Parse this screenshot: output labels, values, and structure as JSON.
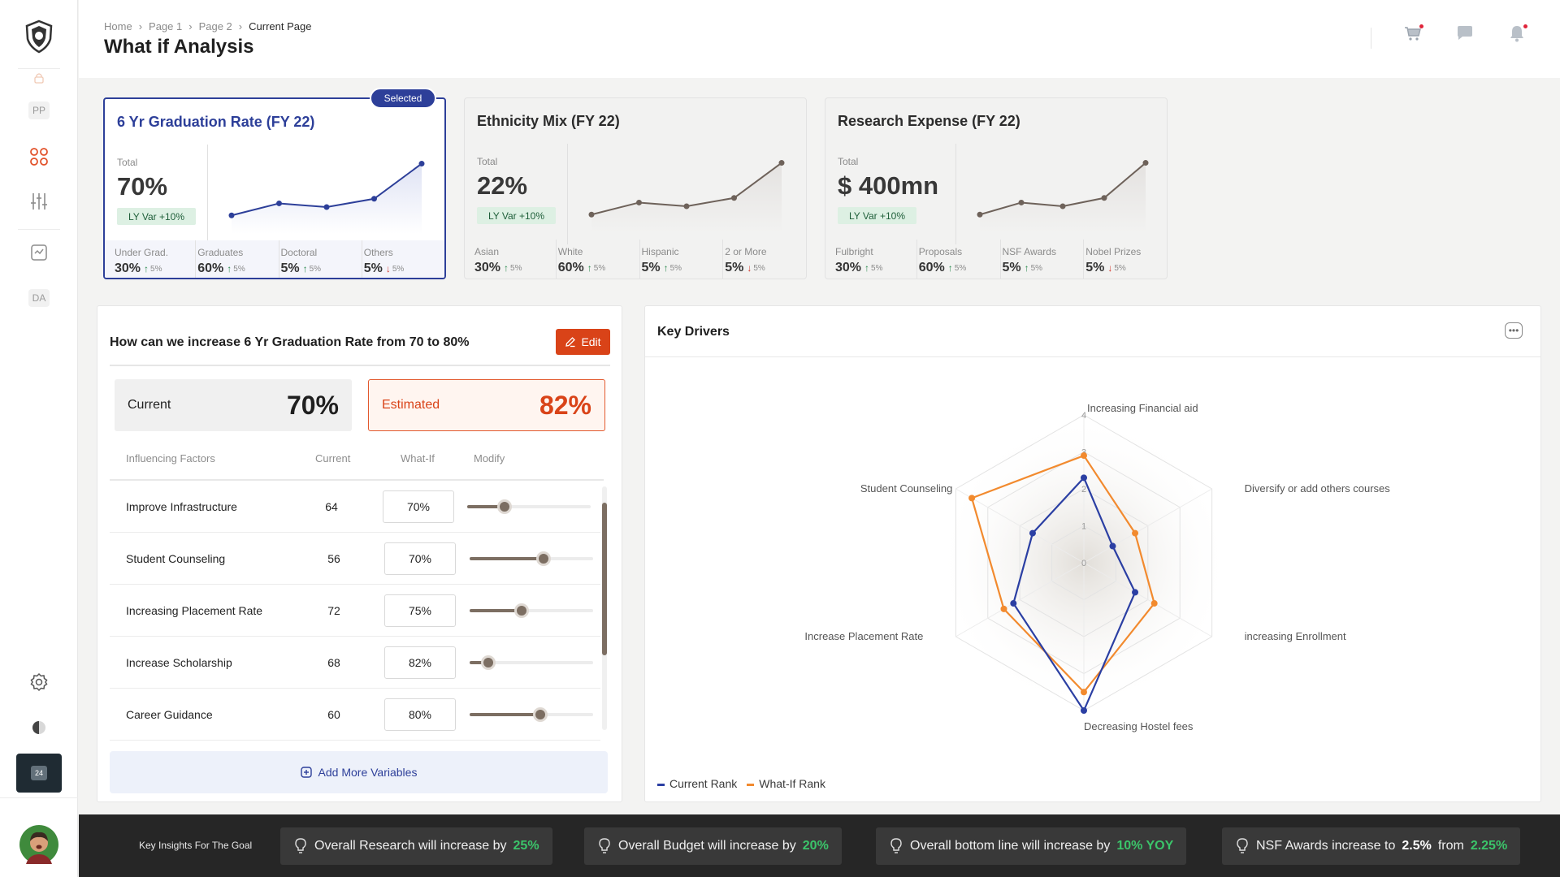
{
  "sidebar": {
    "badges": [
      "PP",
      "DA"
    ],
    "bottom_badge": "24"
  },
  "header": {
    "breadcrumbs": [
      "Home",
      "Page 1",
      "Page 2",
      "Current Page"
    ],
    "title": "What if Analysis"
  },
  "kpis": [
    {
      "title": "6 Yr Graduation Rate (FY 22)",
      "total_label": "Total",
      "value": "70%",
      "ly_var": "LY Var  +10%",
      "selected": true,
      "spark": [
        2.0,
        3.3,
        2.9,
        3.8,
        7.6
      ],
      "subs": [
        {
          "label": "Under Grad.",
          "value": "30%",
          "dir": "up",
          "change": "5%"
        },
        {
          "label": "Graduates",
          "value": "60%",
          "dir": "up",
          "change": "5%"
        },
        {
          "label": "Doctoral",
          "value": "5%",
          "dir": "up",
          "change": "5%"
        },
        {
          "label": "Others",
          "value": "5%",
          "dir": "down",
          "change": "5%"
        }
      ]
    },
    {
      "title": "Ethnicity Mix (FY 22)",
      "total_label": "Total",
      "value": "22%",
      "ly_var": "LY Var  +10%",
      "selected": false,
      "spark": [
        2.0,
        3.3,
        2.9,
        3.8,
        7.6
      ],
      "subs": [
        {
          "label": "Asian",
          "value": "30%",
          "dir": "up",
          "change": "5%"
        },
        {
          "label": "White",
          "value": "60%",
          "dir": "up",
          "change": "5%"
        },
        {
          "label": "Hispanic",
          "value": "5%",
          "dir": "up",
          "change": "5%"
        },
        {
          "label": "2 or More",
          "value": "5%",
          "dir": "down",
          "change": "5%"
        }
      ]
    },
    {
      "title": "Research Expense (FY 22)",
      "total_label": "Total",
      "value": "$ 400mn",
      "ly_var": "LY Var  +10%",
      "selected": false,
      "spark": [
        2.0,
        3.3,
        2.9,
        3.8,
        7.6
      ],
      "subs": [
        {
          "label": "Fulbright",
          "value": "30%",
          "dir": "up",
          "change": "5%"
        },
        {
          "label": "Proposals",
          "value": "60%",
          "dir": "up",
          "change": "5%"
        },
        {
          "label": "NSF Awards",
          "value": "5%",
          "dir": "up",
          "change": "5%"
        },
        {
          "label": "Nobel Prizes",
          "value": "5%",
          "dir": "down",
          "change": "5%"
        }
      ]
    }
  ],
  "selected_pill": "Selected",
  "whatif": {
    "question": "How can we increase 6 Yr Graduation Rate from 70 to 80%",
    "edit_label": "Edit",
    "current_label": "Current",
    "current_value": "70%",
    "estimated_label": "Estimated",
    "estimated_value": "82%",
    "columns": [
      "Influencing Factors",
      "Current",
      "What-If",
      "Modify"
    ],
    "rows": [
      {
        "name": "Improve Infrastructure",
        "current": "64",
        "whatif": "70%",
        "slider": 0.3
      },
      {
        "name": "Student Counseling",
        "current": "56",
        "whatif": "70%",
        "slider": 0.6
      },
      {
        "name": "Increasing Placement Rate",
        "current": "72",
        "whatif": "75%",
        "slider": 0.42
      },
      {
        "name": "Increase Scholarship",
        "current": "68",
        "whatif": "82%",
        "slider": 0.15
      },
      {
        "name": "Career Guidance",
        "current": "60",
        "whatif": "80%",
        "slider": 0.57
      }
    ],
    "add_label": "Add More Variables"
  },
  "key_drivers": {
    "title": "Key Drivers",
    "legend": [
      "Current Rank",
      "What-If Rank"
    ]
  },
  "chart_data": {
    "type": "radar",
    "axes": [
      "Increasing Financial aid",
      "Diversify or add others courses",
      "increasing Enrollment",
      "Decreasing Hostel fees",
      "Increase Placement Rate",
      "Student Counseling"
    ],
    "ticks": [
      "0",
      "1",
      "2",
      "3",
      "4"
    ],
    "range": [
      0,
      4
    ],
    "series": [
      {
        "name": "Current Rank",
        "color": "#2b3fa3",
        "values": [
          2.3,
          0.9,
          1.6,
          4.0,
          2.2,
          1.6
        ]
      },
      {
        "name": "What-If Rank",
        "color": "#f28a2e",
        "values": [
          2.9,
          1.6,
          2.2,
          3.5,
          2.5,
          3.5
        ]
      }
    ]
  },
  "footer": {
    "label": "Key Insights For The Goal",
    "insights": [
      {
        "text": "Overall Research will increase by",
        "highlight": "25%",
        "style": "green"
      },
      {
        "text": "Overall Budget will increase by",
        "highlight": "20%",
        "style": "green"
      },
      {
        "text": "Overall bottom line will increase by",
        "highlight": "10% YOY",
        "style": "green"
      },
      {
        "text": "NSF Awards increase to",
        "highlight": "2.5%",
        "mid": "from",
        "highlight2": "2.25%",
        "style": "mixed"
      }
    ]
  },
  "colors": {
    "primary": "#2d3f99",
    "accent": "#d94318",
    "positive": "#2a8a4d",
    "negative": "#d43a2f"
  }
}
